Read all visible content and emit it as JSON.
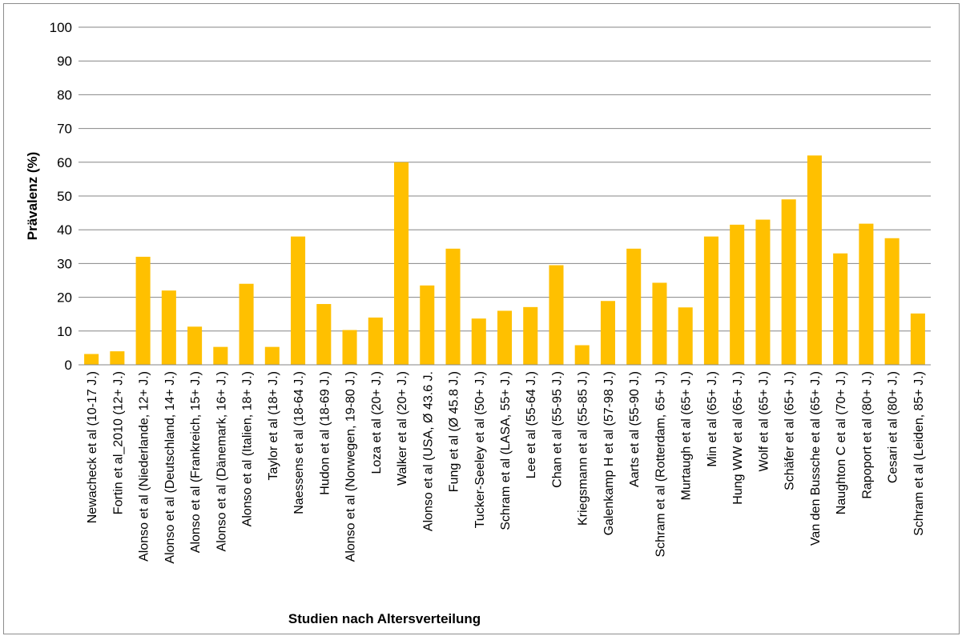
{
  "chart_data": {
    "type": "bar",
    "title": "",
    "xlabel": "Studien nach Altersverteilung",
    "ylabel": "Prävalenz  (%)",
    "ylim": [
      0,
      100
    ],
    "yticks": [
      0,
      10,
      20,
      30,
      40,
      50,
      60,
      70,
      80,
      90,
      100
    ],
    "grid": true,
    "legend": "none",
    "bar_color": "#FFC000",
    "categories": [
      "Newacheck et al (10-17 J.)",
      "Fortin et al_2010 (12+ J.)",
      "Alonso et al (Niederlande, 12+ J.)",
      "Alonso et al (Deutschland, 14+ J.)",
      "Alonso et al (Frankreich, 15+ J.)",
      "Alonso et al (Dänemark, 16+ J.)",
      "Alonso et al (Italien, 18+ J.)",
      "Taylor et al (18+ J.)",
      "Naessens et al (18-64 J.)",
      "Hudon et al (18-69 J.)",
      "Alonso et al (Norwegen, 19-80 J.)",
      "Loza et al (20+ J.)",
      "Walker et al (20+ J.)",
      "Alonso et al (USA, Ø 43.6 J.",
      "Fung et al (Ø 45.8 J.)",
      "Tucker-Seeley et al (50+ J.)",
      "Schram et al (LASA, 55+ J.)",
      "Lee et al (55-64 J.)",
      "Chan et al (55-95 J.)",
      "Kriegsmann et al (55-85 J.)",
      "Galenkamp H et al (57-98 J.)",
      "Aarts et al (55-90 J.)",
      "Schram et al (Rotterdam, 65+ J.)",
      "Murtaugh et al (65+ J.)",
      "Min et al (65+ J.)",
      "Hung WW et al (65+ J.)",
      "Wolf et al (65+ J.)",
      "Schäfer et al (65+ J.)",
      "Van den Bussche et al (65+ J.)",
      "Naughton C et al (70+ J.)",
      "Rapoport et al (80+ J.)",
      "Cesari et al (80+ J.)",
      "Schram et al (Leiden, 85+ J.)"
    ],
    "values": [
      3.2,
      4.0,
      32.0,
      22.0,
      11.3,
      5.3,
      24.0,
      5.3,
      38.0,
      18.0,
      10.3,
      14.0,
      60.0,
      23.5,
      34.4,
      13.7,
      16.0,
      17.1,
      29.5,
      5.8,
      18.9,
      34.4,
      24.3,
      17.0,
      38.0,
      41.5,
      43.0,
      49.0,
      62.0,
      33.0,
      41.8,
      37.5,
      15.2
    ]
  }
}
